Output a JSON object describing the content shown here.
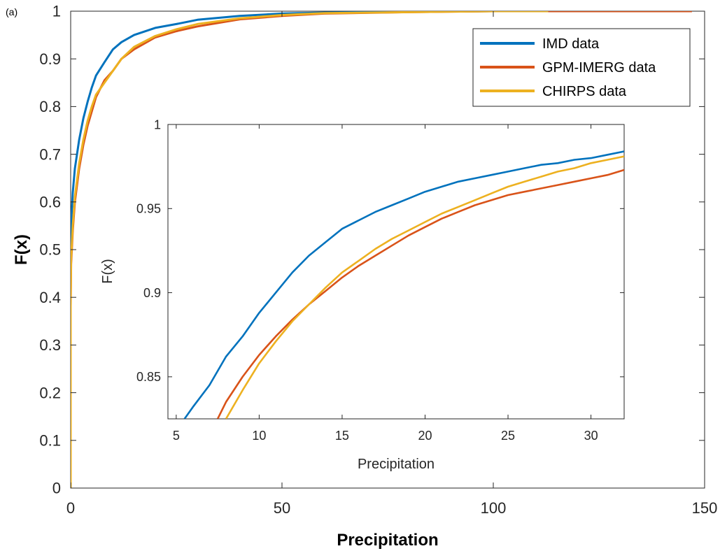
{
  "panel_label": "(a)",
  "colors": {
    "series": [
      "#0072BD",
      "#D95319",
      "#EDB120"
    ],
    "axis": "#262626"
  },
  "chart_data": [
    {
      "type": "line",
      "role": "main",
      "title": "",
      "xlabel": "Precipitation",
      "ylabel": "F(x)",
      "xlim": [
        0,
        150
      ],
      "ylim": [
        0,
        1
      ],
      "xticks": [
        0,
        50,
        100,
        150
      ],
      "yticks": [
        0,
        0.1,
        0.2,
        0.3,
        0.4,
        0.5,
        0.6,
        0.7,
        0.8,
        0.9,
        1
      ],
      "ytick_labels": [
        "0",
        "0.1",
        "0.2",
        "0.3",
        "0.4",
        "0.5",
        "0.6",
        "0.7",
        "0.8",
        "0.9",
        "1"
      ],
      "grid": false,
      "legend": "top-right",
      "series": [
        {
          "name": "IMD data",
          "x": [
            0,
            0,
            0.1,
            0.5,
            1,
            2,
            3,
            4,
            5,
            6,
            8,
            10,
            12,
            15,
            20,
            25,
            30,
            40,
            50,
            60,
            80,
            100,
            130
          ],
          "y": [
            0,
            0.45,
            0.55,
            0.62,
            0.67,
            0.73,
            0.775,
            0.81,
            0.84,
            0.865,
            0.893,
            0.92,
            0.935,
            0.95,
            0.965,
            0.973,
            0.982,
            0.99,
            0.995,
            0.997,
            0.999,
            1.0,
            1.0
          ]
        },
        {
          "name": "GPM-IMERG data",
          "x": [
            0,
            0,
            0.1,
            0.5,
            1,
            2,
            3,
            4,
            5,
            6,
            8,
            10,
            12,
            15,
            20,
            25,
            30,
            40,
            50,
            60,
            80,
            100,
            147
          ],
          "y": [
            0,
            0.38,
            0.47,
            0.54,
            0.6,
            0.67,
            0.72,
            0.76,
            0.79,
            0.82,
            0.855,
            0.875,
            0.9,
            0.92,
            0.945,
            0.958,
            0.968,
            0.983,
            0.99,
            0.995,
            0.998,
            1.0,
            1.0
          ]
        },
        {
          "name": "CHIRPS data",
          "x": [
            0,
            0,
            0.1,
            0.5,
            1,
            2,
            3,
            4,
            5,
            6,
            8,
            10,
            12,
            15,
            20,
            25,
            30,
            40,
            50,
            60,
            80,
            100,
            113
          ],
          "y": [
            0,
            0.4,
            0.48,
            0.55,
            0.61,
            0.68,
            0.73,
            0.77,
            0.8,
            0.825,
            0.85,
            0.875,
            0.9,
            0.925,
            0.948,
            0.962,
            0.973,
            0.985,
            0.992,
            0.996,
            0.998,
            1.0,
            1.0
          ]
        }
      ]
    },
    {
      "type": "line",
      "role": "inset",
      "title": "",
      "xlabel": "Precipitation",
      "ylabel": "F(x)",
      "xlim": [
        4.5,
        32
      ],
      "ylim": [
        0.825,
        1.0
      ],
      "xticks": [
        5,
        10,
        15,
        20,
        25,
        30
      ],
      "yticks": [
        0.85,
        0.9,
        0.95,
        1
      ],
      "ytick_labels": [
        "0.85",
        "0.9",
        "0.95",
        "1"
      ],
      "grid": false,
      "series": [
        {
          "name": "IMD data",
          "x": [
            5.5,
            6,
            7,
            8,
            9,
            10,
            11,
            12,
            13,
            14,
            15,
            16,
            17,
            18,
            19,
            20,
            21,
            22,
            23,
            24,
            25,
            26,
            27,
            28,
            29,
            30,
            31,
            32
          ],
          "y": [
            0.825,
            0.832,
            0.845,
            0.862,
            0.874,
            0.888,
            0.9,
            0.912,
            0.922,
            0.93,
            0.938,
            0.943,
            0.948,
            0.952,
            0.956,
            0.96,
            0.963,
            0.966,
            0.968,
            0.97,
            0.972,
            0.974,
            0.976,
            0.977,
            0.979,
            0.98,
            0.982,
            0.984
          ]
        },
        {
          "name": "GPM-IMERG data",
          "x": [
            7.5,
            8,
            9,
            10,
            11,
            12,
            13,
            14,
            15,
            16,
            17,
            18,
            19,
            20,
            21,
            22,
            23,
            24,
            25,
            26,
            27,
            28,
            29,
            30,
            31,
            32
          ],
          "y": [
            0.825,
            0.835,
            0.85,
            0.863,
            0.874,
            0.884,
            0.893,
            0.901,
            0.909,
            0.916,
            0.922,
            0.928,
            0.934,
            0.939,
            0.944,
            0.948,
            0.952,
            0.955,
            0.958,
            0.96,
            0.962,
            0.964,
            0.966,
            0.968,
            0.97,
            0.973
          ]
        },
        {
          "name": "CHIRPS data",
          "x": [
            8,
            9,
            10,
            11,
            12,
            13,
            14,
            15,
            16,
            17,
            18,
            19,
            20,
            21,
            22,
            23,
            24,
            25,
            26,
            27,
            28,
            29,
            30,
            31,
            32
          ],
          "y": [
            0.825,
            0.842,
            0.858,
            0.871,
            0.883,
            0.893,
            0.903,
            0.912,
            0.919,
            0.926,
            0.932,
            0.937,
            0.942,
            0.947,
            0.951,
            0.955,
            0.959,
            0.963,
            0.966,
            0.969,
            0.972,
            0.974,
            0.977,
            0.979,
            0.981
          ]
        }
      ]
    }
  ]
}
